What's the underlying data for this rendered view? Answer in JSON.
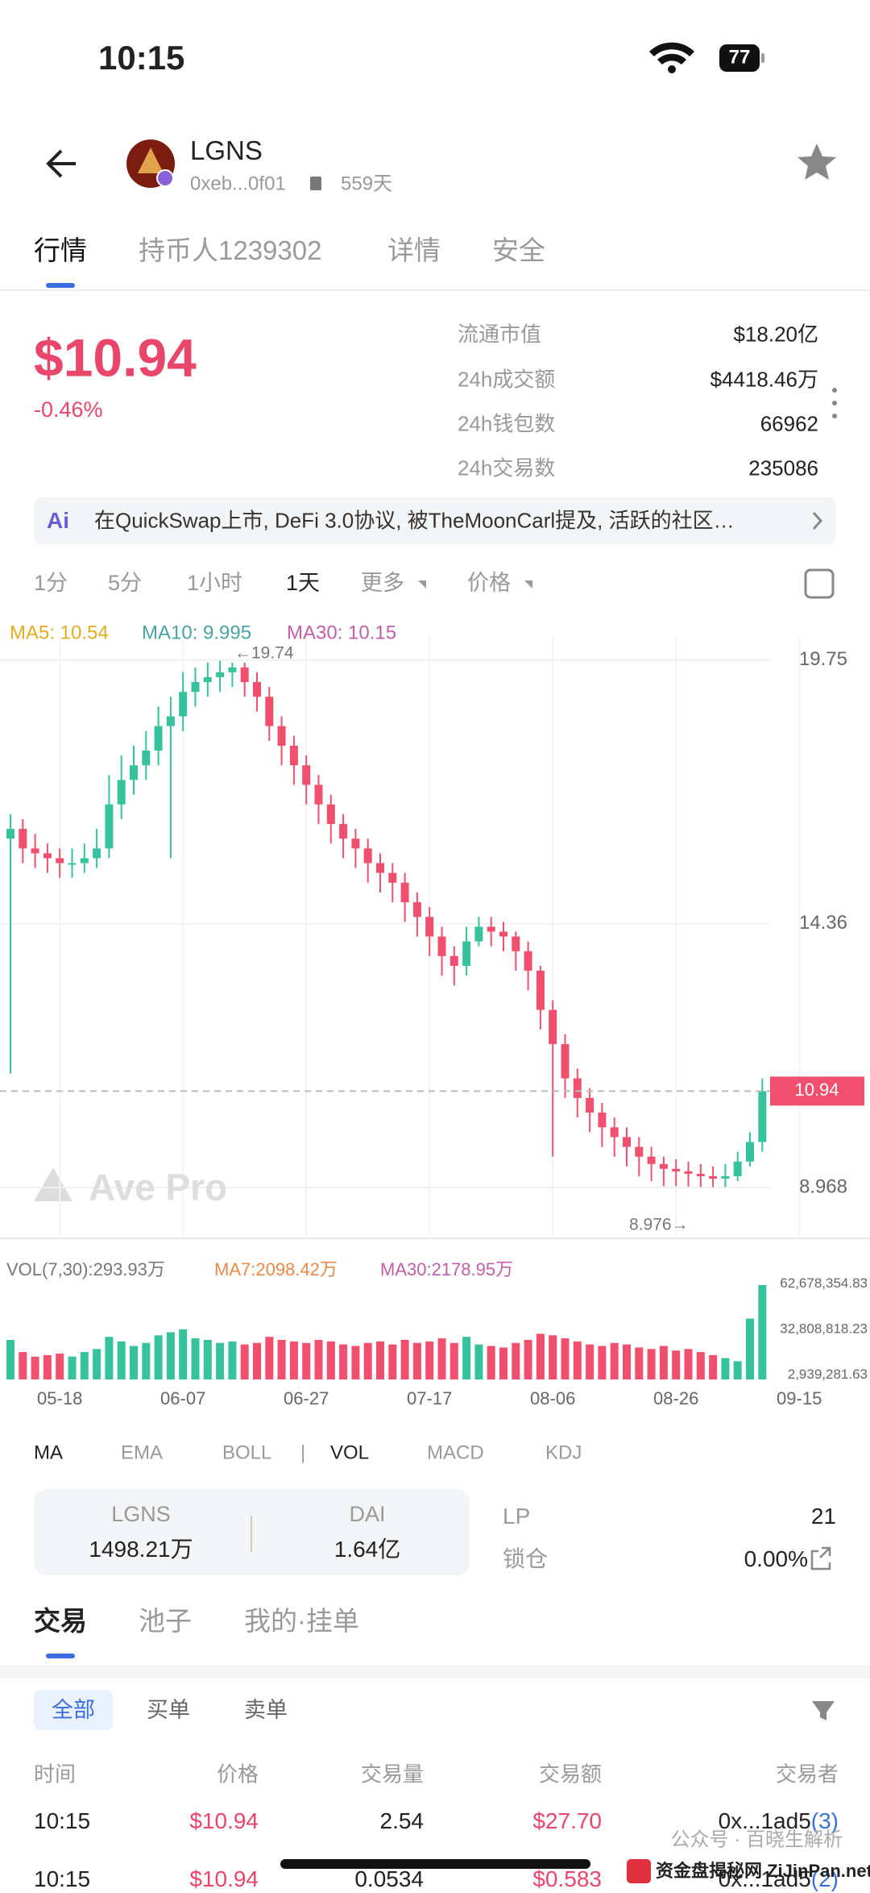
{
  "status_bar": {
    "time": "10:15",
    "battery": "77"
  },
  "header": {
    "token": "LGNS",
    "address": "0xeb...0f01",
    "age": "559天"
  },
  "tabs": [
    "行情",
    "持币人1239302",
    "详情",
    "安全"
  ],
  "price": {
    "value": "$10.94",
    "change": "-0.46%"
  },
  "stats": [
    {
      "label": "流通市值",
      "value": "$18.20亿"
    },
    {
      "label": "24h成交额",
      "value": "$4418.46万"
    },
    {
      "label": "24h钱包数",
      "value": "66962"
    },
    {
      "label": "24h交易数",
      "value": "235086"
    }
  ],
  "ai_summary": "在QuickSwap上市, DeFi 3.0协议, 被TheMoonCarl提及, 活跃的社区…",
  "periods": [
    "1分",
    "5分",
    "1小时",
    "1天",
    "更多",
    "价格"
  ],
  "ma_legend": [
    "MA5: 10.54",
    "MA10: 9.995",
    "MA30: 10.15"
  ],
  "chart_data": [
    {
      "type": "candlestick",
      "up_color": "#36c29c",
      "down_color": "#f0506e",
      "grid": true,
      "ylim": [
        7.93,
        20.24
      ],
      "yticks": [
        19.75,
        14.36,
        8.968
      ],
      "last_price": 10.94,
      "max_label": "←19.74",
      "min_label": "8.976→",
      "watermark": "Ave Pro",
      "open": [
        16.1,
        16.3,
        15.9,
        15.8,
        15.7,
        15.6,
        15.6,
        15.7,
        15.9,
        16.8,
        17.3,
        17.6,
        17.9,
        18.4,
        18.6,
        19.1,
        19.3,
        19.4,
        19.5,
        19.6,
        19.3,
        19.0,
        18.4,
        18.0,
        17.6,
        17.2,
        16.8,
        16.4,
        16.1,
        15.9,
        15.6,
        15.4,
        15.2,
        14.8,
        14.5,
        14.1,
        13.7,
        13.5,
        14.0,
        14.3,
        14.2,
        14.1,
        13.8,
        13.4,
        12.6,
        11.9,
        11.2,
        10.8,
        10.5,
        10.2,
        10.0,
        9.8,
        9.6,
        9.45,
        9.35,
        9.3,
        9.25,
        9.2,
        9.15,
        9.2,
        9.5,
        9.9,
        null,
        null,
        null
      ],
      "high": [
        16.6,
        16.5,
        16.2,
        16.0,
        15.9,
        15.9,
        16.0,
        16.3,
        17.4,
        17.8,
        18.0,
        18.3,
        18.8,
        19.0,
        19.5,
        19.6,
        19.7,
        19.74,
        19.7,
        19.7,
        19.5,
        19.2,
        18.6,
        18.2,
        17.8,
        17.4,
        17.0,
        16.6,
        16.3,
        16.1,
        15.8,
        15.6,
        15.4,
        15.0,
        14.7,
        14.3,
        13.9,
        14.3,
        14.5,
        14.5,
        14.4,
        14.2,
        14.0,
        13.5,
        12.8,
        12.1,
        11.4,
        11.0,
        10.7,
        10.4,
        10.2,
        10.0,
        9.8,
        9.6,
        9.55,
        9.5,
        9.45,
        9.4,
        9.45,
        9.7,
        10.1,
        11.2,
        null,
        null,
        null
      ],
      "low": [
        11.3,
        15.6,
        15.5,
        15.4,
        15.3,
        15.3,
        15.4,
        15.5,
        15.7,
        16.5,
        17.0,
        17.3,
        17.6,
        15.7,
        18.3,
        18.8,
        19.0,
        19.1,
        19.2,
        19.0,
        18.7,
        18.1,
        17.6,
        17.2,
        16.8,
        16.4,
        16.0,
        15.7,
        15.5,
        15.2,
        15.0,
        14.8,
        14.4,
        14.1,
        13.7,
        13.3,
        13.1,
        13.3,
        13.9,
        13.9,
        13.8,
        13.4,
        13.0,
        12.2,
        9.6,
        10.8,
        10.4,
        10.1,
        9.8,
        9.6,
        9.4,
        9.2,
        9.1,
        9.0,
        9.0,
        8.99,
        8.98,
        8.976,
        8.98,
        9.1,
        9.4,
        9.7,
        null,
        null,
        null
      ],
      "close": [
        16.3,
        15.9,
        15.8,
        15.7,
        15.6,
        15.6,
        15.7,
        15.9,
        16.8,
        17.3,
        17.6,
        17.9,
        18.4,
        18.6,
        19.1,
        19.3,
        19.4,
        19.5,
        19.6,
        19.3,
        19.0,
        18.4,
        18.0,
        17.6,
        17.2,
        16.8,
        16.4,
        16.1,
        15.9,
        15.6,
        15.4,
        15.2,
        14.8,
        14.5,
        14.1,
        13.7,
        13.5,
        14.0,
        14.3,
        14.2,
        14.1,
        13.8,
        13.4,
        12.6,
        11.9,
        11.2,
        10.8,
        10.5,
        10.2,
        10.0,
        9.8,
        9.6,
        9.45,
        9.35,
        9.3,
        9.25,
        9.2,
        9.15,
        9.2,
        9.5,
        9.9,
        10.94,
        null,
        null,
        null
      ]
    },
    {
      "type": "bar",
      "grid": false,
      "ylim": [
        0,
        67300000
      ],
      "yticks": [
        {
          "value": 62678354.83,
          "label": "62,678,354.83"
        },
        {
          "value": 32808818.23,
          "label": "32,808,818.23"
        },
        {
          "value": 2939281.63,
          "label": "2,939,281.63"
        }
      ],
      "categories": [
        null,
        null,
        null,
        null,
        "05-18",
        null,
        null,
        null,
        null,
        null,
        null,
        null,
        null,
        null,
        "06-07",
        null,
        null,
        null,
        null,
        null,
        null,
        null,
        null,
        null,
        "06-27",
        null,
        null,
        null,
        null,
        null,
        null,
        null,
        null,
        null,
        "07-17",
        null,
        null,
        null,
        null,
        null,
        null,
        null,
        null,
        null,
        "08-06",
        null,
        null,
        null,
        null,
        null,
        null,
        null,
        null,
        null,
        "08-26",
        null,
        null,
        null,
        null,
        null,
        null,
        null,
        null,
        null,
        "09-15"
      ],
      "values": [
        26000000,
        18000000,
        15000000,
        16000000,
        17000000,
        15000000,
        18000000,
        20000000,
        28000000,
        25000000,
        22000000,
        24000000,
        29000000,
        31000000,
        33000000,
        27000000,
        26000000,
        24000000,
        25000000,
        23000000,
        24000000,
        28000000,
        26000000,
        25000000,
        24000000,
        26000000,
        25000000,
        23000000,
        22000000,
        24000000,
        25000000,
        23000000,
        26000000,
        24000000,
        25000000,
        27000000,
        24000000,
        28000000,
        23000000,
        22000000,
        21000000,
        24000000,
        26000000,
        30000000,
        29000000,
        27000000,
        25000000,
        23000000,
        22000000,
        24000000,
        23000000,
        21000000,
        20000000,
        22000000,
        19000000,
        20000000,
        18000000,
        16000000,
        14000000,
        12000000,
        40000000,
        62000000,
        null,
        null,
        null
      ]
    }
  ],
  "vol_legend": [
    "VOL(7,30):293.93万",
    "MA7:2098.42万",
    "MA30:2178.95万"
  ],
  "indicators": [
    "MA",
    "EMA",
    "BOLL",
    "VOL",
    "MACD",
    "KDJ"
  ],
  "pool": [
    {
      "token": "LGNS",
      "amount": "1498.21万"
    },
    {
      "token": "DAI",
      "amount": "1.64亿"
    }
  ],
  "lp": {
    "label": "LP",
    "value": "21"
  },
  "lock": {
    "label": "锁仓",
    "value": "0.00%"
  },
  "trade_tabs": [
    "交易",
    "池子",
    "我的·挂单"
  ],
  "filters": [
    "全部",
    "买单",
    "卖单"
  ],
  "table": {
    "columns": [
      "时间",
      "价格",
      "交易量",
      "交易额",
      "交易者"
    ],
    "rows": [
      [
        "10:15",
        "$10.94",
        "2.54",
        "$27.70",
        "0x...1ad5",
        "(3)"
      ],
      [
        "10:15",
        "$10.94",
        "0.0534",
        "$0.583",
        "0x...1ad5",
        "(2)"
      ]
    ]
  },
  "watermarks": [
    "公众号 · 百晓生解析",
    "资金盘揭秘网 ZiJinPan.net"
  ]
}
